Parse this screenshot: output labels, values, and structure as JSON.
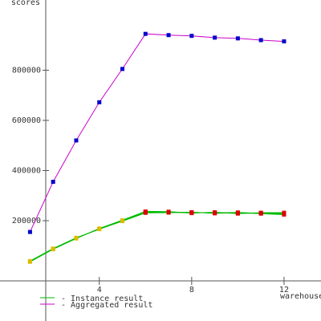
{
  "chart_data": {
    "type": "line",
    "title": "",
    "xlabel": "warehouses",
    "ylabel": "scores",
    "xlim": [
      -0.3,
      13.6
    ],
    "ylim": [
      -200000,
      1080000
    ],
    "x_ticks": [
      4,
      8,
      12
    ],
    "y_ticks": [
      200000,
      400000,
      600000,
      800000
    ],
    "grid": false,
    "legend_position": "bottom-left",
    "series": [
      {
        "name": "Aggregated result",
        "color": "#cc00cc",
        "marker_color": "#0000cc",
        "x": [
          1,
          2,
          3,
          4,
          5,
          6,
          7,
          8,
          9,
          10,
          11,
          12
        ],
        "y": [
          155000,
          355000,
          520000,
          672000,
          805000,
          945000,
          940000,
          937000,
          930000,
          927000,
          920000,
          915000
        ]
      },
      {
        "name": "Instance result",
        "color": "#00bb00",
        "marker_color": "#ddbb00",
        "instances": [
          {
            "x": [
              1,
              2,
              3,
              4,
              5,
              6,
              7,
              8,
              9,
              10,
              11,
              12
            ],
            "y": [
              37000,
              87000,
              130000,
              168000,
              200000,
              235000,
              235000,
              232000,
              232000,
              230000,
              230000,
              230000
            ]
          },
          {
            "x": [
              1,
              2,
              3,
              4,
              5,
              6,
              7,
              8,
              9,
              10,
              11,
              12
            ],
            "y": [
              38000,
              88000,
              131000,
              167000,
              198000,
              231000,
              232000,
              234000,
              229000,
              232000,
              228000,
              224000
            ]
          },
          {
            "x": [
              1,
              2,
              3,
              4,
              5,
              6,
              7,
              8,
              9,
              10,
              11,
              12
            ],
            "y": [
              36000,
              86000,
              129000,
              169000,
              202000,
              237000,
              236000,
              230000,
              234000,
              228000,
              232000,
              232000
            ]
          },
          {
            "x": [
              1,
              2,
              3,
              4,
              5,
              6,
              7,
              8,
              9,
              10,
              11,
              12
            ],
            "y": [
              39000,
              89000,
              132000,
              166000,
              199000,
              233000,
              233000,
              233000,
              231000,
              233000,
              229000,
              227000
            ]
          }
        ]
      }
    ],
    "legend": [
      {
        "label": "- Instance result",
        "color": "#00bb00"
      },
      {
        "label": "- Aggregated result",
        "color": "#cc00cc"
      }
    ],
    "instance_marker_color_late": "#dd0000"
  }
}
